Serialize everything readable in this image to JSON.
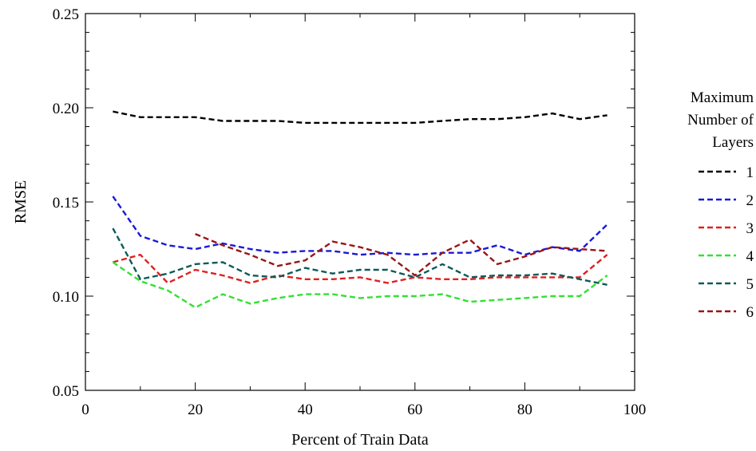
{
  "chart_data": {
    "type": "line",
    "xlabel": "Percent of Train Data",
    "ylabel": "RMSE",
    "xlim": [
      0,
      100
    ],
    "ylim": [
      0.05,
      0.25
    ],
    "xticks": [
      0,
      20,
      40,
      60,
      80,
      100
    ],
    "xtick_labels": [
      "0",
      "20",
      "40",
      "60",
      "80",
      "100"
    ],
    "yticks": [
      0.05,
      0.1,
      0.15,
      0.2,
      0.25
    ],
    "ytick_labels": [
      "0.05",
      "0.10",
      "0.15",
      "0.20",
      "0.25"
    ],
    "grid": false,
    "line_style": "dashed",
    "legend": {
      "placement": "right",
      "title_lines": [
        "Maximum",
        "Number of",
        "Layers"
      ]
    },
    "series": [
      {
        "name": "1",
        "color": "#000000",
        "x": [
          5,
          10,
          15,
          20,
          25,
          30,
          35,
          40,
          45,
          50,
          55,
          60,
          65,
          70,
          75,
          80,
          85,
          90,
          95
        ],
        "y": [
          0.198,
          0.195,
          0.195,
          0.195,
          0.193,
          0.193,
          0.193,
          0.192,
          0.192,
          0.192,
          0.192,
          0.192,
          0.193,
          0.194,
          0.194,
          0.195,
          0.197,
          0.194,
          0.196
        ]
      },
      {
        "name": "2",
        "color": "#1a1ad6",
        "x": [
          5,
          10,
          15,
          20,
          25,
          30,
          35,
          40,
          45,
          50,
          55,
          60,
          65,
          70,
          75,
          80,
          85,
          90,
          95
        ],
        "y": [
          0.153,
          0.132,
          0.127,
          0.125,
          0.128,
          0.125,
          0.123,
          0.124,
          0.124,
          0.122,
          0.123,
          0.122,
          0.123,
          0.123,
          0.127,
          0.122,
          0.126,
          0.124,
          0.138
        ]
      },
      {
        "name": "3",
        "color": "#e02020",
        "x": [
          5,
          10,
          15,
          20,
          25,
          30,
          35,
          40,
          45,
          50,
          55,
          60,
          65,
          70,
          75,
          80,
          85,
          90,
          95
        ],
        "y": [
          0.118,
          0.122,
          0.107,
          0.114,
          0.111,
          0.107,
          0.111,
          0.109,
          0.109,
          0.11,
          0.107,
          0.11,
          0.109,
          0.109,
          0.11,
          0.11,
          0.11,
          0.11,
          0.122
        ]
      },
      {
        "name": "4",
        "color": "#33e033",
        "x": [
          5,
          10,
          15,
          20,
          25,
          30,
          35,
          40,
          45,
          50,
          55,
          60,
          65,
          70,
          75,
          80,
          85,
          90,
          95
        ],
        "y": [
          0.118,
          0.108,
          0.103,
          0.094,
          0.101,
          0.096,
          0.099,
          0.101,
          0.101,
          0.099,
          0.1,
          0.1,
          0.101,
          0.097,
          0.098,
          0.099,
          0.1,
          0.1,
          0.111
        ]
      },
      {
        "name": "5",
        "color": "#0e5a5a",
        "x": [
          5,
          10,
          15,
          20,
          25,
          30,
          35,
          40,
          45,
          50,
          55,
          60,
          65,
          70,
          75,
          80,
          85,
          90,
          95
        ],
        "y": [
          0.136,
          0.109,
          0.112,
          0.117,
          0.118,
          0.111,
          0.11,
          0.115,
          0.112,
          0.114,
          0.114,
          0.11,
          0.117,
          0.11,
          0.111,
          0.111,
          0.112,
          0.109,
          0.106
        ]
      },
      {
        "name": "6",
        "color": "#991515",
        "x": [
          20,
          25,
          30,
          35,
          40,
          45,
          50,
          55,
          60,
          65,
          70,
          75,
          80,
          85,
          90,
          95
        ],
        "y": [
          0.133,
          0.127,
          0.122,
          0.116,
          0.119,
          0.129,
          0.126,
          0.122,
          0.111,
          0.123,
          0.13,
          0.117,
          0.121,
          0.126,
          0.125,
          0.124
        ]
      }
    ]
  }
}
